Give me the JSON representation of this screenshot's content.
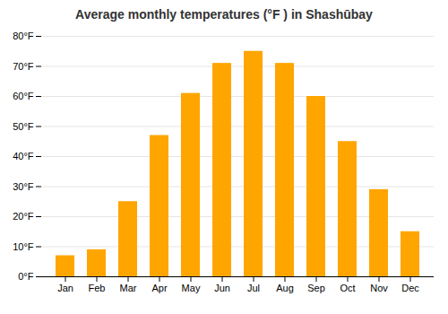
{
  "chart_data": {
    "type": "bar",
    "title": "Average monthly temperatures (°F ) in Shashūbay",
    "categories": [
      "Jan",
      "Feb",
      "Mar",
      "Apr",
      "May",
      "Jun",
      "Jul",
      "Aug",
      "Sep",
      "Oct",
      "Nov",
      "Dec"
    ],
    "values": [
      7,
      9,
      25,
      47,
      61,
      71,
      75,
      71,
      60,
      45,
      29,
      15
    ],
    "color": "#FFA500",
    "ylim": [
      0,
      80
    ],
    "yticks": [
      {
        "value": 0,
        "label": "0°F"
      },
      {
        "value": 10,
        "label": "10°F"
      },
      {
        "value": 20,
        "label": "20°F"
      },
      {
        "value": 30,
        "label": "30°F"
      },
      {
        "value": 40,
        "label": "40°F"
      },
      {
        "value": 50,
        "label": "50°F"
      },
      {
        "value": 60,
        "label": "60°F"
      },
      {
        "value": 70,
        "label": "70°F"
      },
      {
        "value": 80,
        "label": "80°F"
      }
    ],
    "grid": true
  }
}
